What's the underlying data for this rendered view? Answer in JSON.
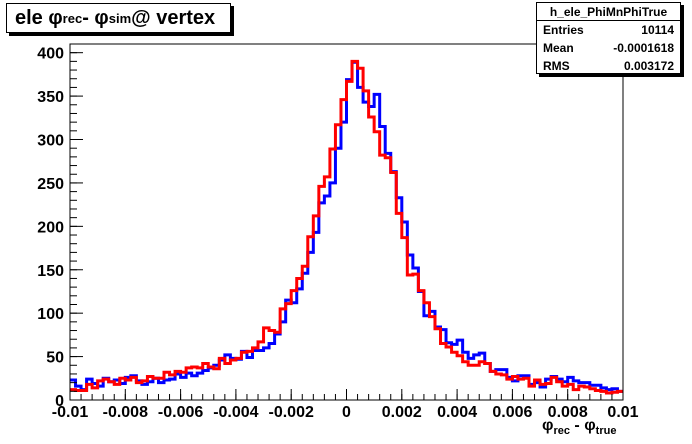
{
  "title": {
    "main": "ele φ",
    "sub1": "rec",
    "mid": " - φ",
    "sub2": "sim",
    "tail": " @ vertex"
  },
  "stats": {
    "name": "h_ele_PhiMnPhiTrue",
    "rows": [
      {
        "label": "Entries",
        "value": "10114"
      },
      {
        "label": "Mean",
        "value": "-0.0001618"
      },
      {
        "label": "RMS",
        "value": "0.003172"
      }
    ]
  },
  "axis": {
    "xlabel_main": "φ",
    "xlabel_sub1": "rec",
    "xlabel_mid": " - φ",
    "xlabel_sub2": "true"
  },
  "colors": {
    "series1": "#0000ff",
    "series2": "#ff0000",
    "frame": "#000000"
  },
  "chart_data": {
    "type": "line",
    "style": "step histogram",
    "xlim": [
      -0.01,
      0.01
    ],
    "ylim": [
      0,
      410
    ],
    "x_ticks": [
      -0.01,
      -0.008,
      -0.006,
      -0.004,
      -0.002,
      0,
      0.002,
      0.004,
      0.006,
      0.008,
      0.01
    ],
    "x_tick_labels": [
      "-0.01",
      "-0.008",
      "-0.006",
      "-0.004",
      "-0.002",
      "0",
      "0.002",
      "0.004",
      "0.006",
      "0.008",
      "0.01"
    ],
    "y_ticks": [
      0,
      50,
      100,
      150,
      200,
      250,
      300,
      350,
      400
    ],
    "y_tick_labels": [
      "0",
      "50",
      "100",
      "150",
      "200",
      "250",
      "300",
      "350",
      "400"
    ],
    "grid": false,
    "series": [
      {
        "color": "#0000ff",
        "values": [
          23,
          16,
          12,
          24,
          19,
          16,
          25,
          21,
          23,
          19,
          26,
          28,
          22,
          18,
          21,
          25,
          20,
          23,
          24,
          30,
          26,
          31,
          28,
          31,
          34,
          37,
          40,
          46,
          52,
          48,
          47,
          56,
          49,
          57,
          57,
          60,
          65,
          76,
          90,
          115,
          112,
          128,
          146,
          170,
          193,
          227,
          235,
          250,
          290,
          320,
          369,
          389,
          360,
          343,
          338,
          352,
          315,
          284,
          263,
          233,
          205,
          167,
          152,
          125,
          97,
          102,
          84,
          81,
          66,
          64,
          69,
          55,
          48,
          52,
          54,
          42,
          33,
          35,
          35,
          26,
          22,
          28,
          28,
          18,
          20,
          15,
          24,
          27,
          24,
          21,
          26,
          22,
          20,
          20,
          17,
          17,
          14,
          12,
          13,
          10
        ]
      },
      {
        "color": "#ff0000",
        "values": [
          12,
          11,
          11,
          18,
          14,
          22,
          24,
          21,
          18,
          25,
          23,
          26,
          20,
          22,
          27,
          25,
          25,
          32,
          29,
          33,
          32,
          37,
          38,
          37,
          42,
          38,
          36,
          48,
          42,
          46,
          48,
          55,
          56,
          60,
          67,
          83,
          80,
          78,
          105,
          111,
          126,
          140,
          154,
          188,
          212,
          246,
          257,
          289,
          317,
          346,
          367,
          390,
          382,
          356,
          326,
          309,
          282,
          279,
          262,
          215,
          187,
          144,
          145,
          126,
          112,
          96,
          82,
          65,
          61,
          55,
          51,
          44,
          40,
          40,
          44,
          42,
          33,
          30,
          29,
          24,
          27,
          24,
          25,
          16,
          23,
          18,
          19,
          26,
          21,
          16,
          18,
          12,
          16,
          15,
          13,
          11,
          10,
          8,
          9,
          10
        ]
      }
    ]
  }
}
